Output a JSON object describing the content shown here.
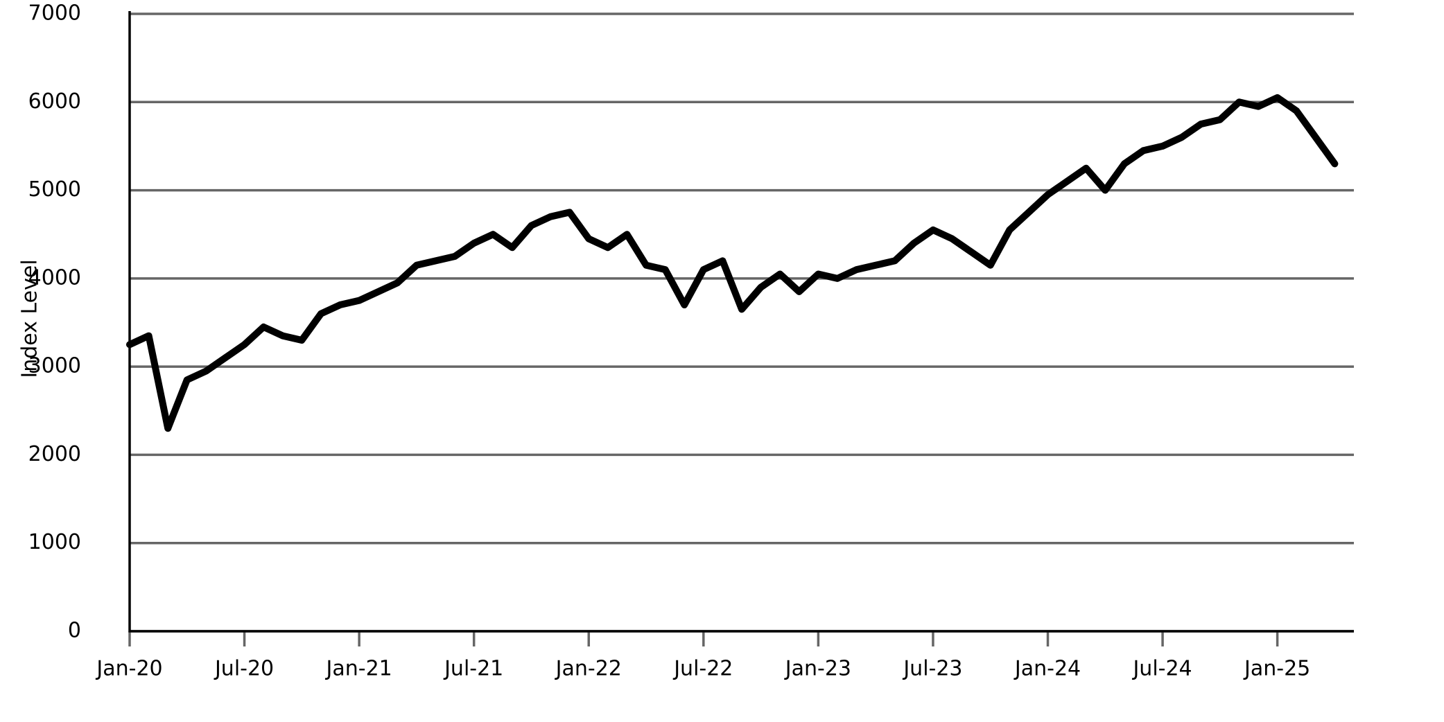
{
  "chart_data": {
    "type": "line",
    "y_label": "Index Level",
    "x": [
      "2020-01",
      "2020-02",
      "2020-03",
      "2020-04",
      "2020-05",
      "2020-06",
      "2020-07",
      "2020-08",
      "2020-09",
      "2020-10",
      "2020-11",
      "2020-12",
      "2021-01",
      "2021-02",
      "2021-03",
      "2021-04",
      "2021-05",
      "2021-06",
      "2021-07",
      "2021-08",
      "2021-09",
      "2021-10",
      "2021-11",
      "2021-12",
      "2022-01",
      "2022-02",
      "2022-03",
      "2022-04",
      "2022-05",
      "2022-06",
      "2022-07",
      "2022-08",
      "2022-09",
      "2022-10",
      "2022-11",
      "2022-12",
      "2023-01",
      "2023-02",
      "2023-03",
      "2023-04",
      "2023-05",
      "2023-06",
      "2023-07",
      "2023-08",
      "2023-09",
      "2023-10",
      "2023-11",
      "2023-12",
      "2024-01",
      "2024-02",
      "2024-03",
      "2024-04",
      "2024-05",
      "2024-06",
      "2024-07",
      "2024-08",
      "2024-09",
      "2024-10",
      "2024-11",
      "2024-12",
      "2025-01",
      "2025-02",
      "2025-03",
      "2025-04"
    ],
    "series": [
      {
        "color": "#000000",
        "values": [
          3250,
          3350,
          2300,
          2850,
          2950,
          3100,
          3250,
          3450,
          3350,
          3300,
          3600,
          3700,
          3750,
          3850,
          3950,
          4150,
          4200,
          4250,
          4400,
          4500,
          4350,
          4600,
          4700,
          4750,
          4450,
          4350,
          4500,
          4150,
          4100,
          3700,
          4100,
          4200,
          3650,
          3900,
          4050,
          3850,
          4050,
          4000,
          4100,
          4150,
          4200,
          4400,
          4550,
          4450,
          4300,
          4150,
          4550,
          4750,
          4950,
          5100,
          5250,
          5000,
          5300,
          5450,
          5500,
          5600,
          5750,
          5800,
          6000,
          5950,
          6050,
          5900,
          5600,
          5300
        ]
      }
    ],
    "xlim": [
      "2020-01",
      "2025-05"
    ],
    "xticks": [
      {
        "value": "2020-01",
        "label": "Jan-20"
      },
      {
        "value": "2020-07",
        "label": "Jul-20"
      },
      {
        "value": "2021-01",
        "label": "Jan-21"
      },
      {
        "value": "2021-07",
        "label": "Jul-21"
      },
      {
        "value": "2022-01",
        "label": "Jan-22"
      },
      {
        "value": "2022-07",
        "label": "Jul-22"
      },
      {
        "value": "2023-01",
        "label": "Jan-23"
      },
      {
        "value": "2023-07",
        "label": "Jul-23"
      },
      {
        "value": "2024-01",
        "label": "Jan-24"
      },
      {
        "value": "2024-07",
        "label": "Jul-24"
      },
      {
        "value": "2025-01",
        "label": "Jan-25"
      }
    ],
    "ylim": [
      0,
      7000
    ],
    "yticks": [
      0,
      1000,
      2000,
      3000,
      4000,
      5000,
      6000,
      7000
    ],
    "grid": true
  }
}
